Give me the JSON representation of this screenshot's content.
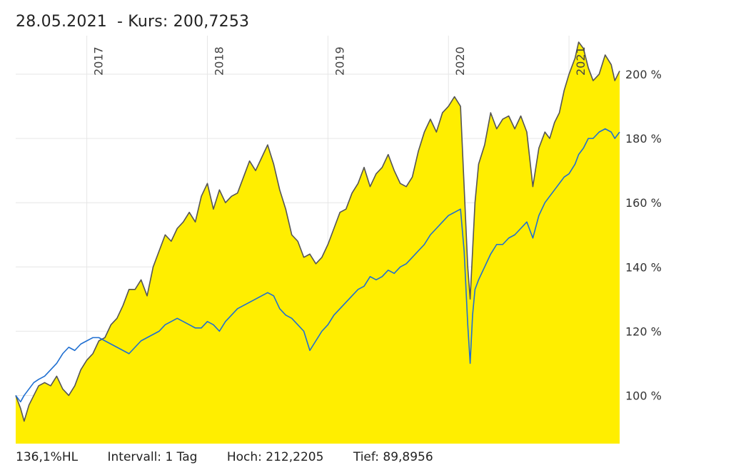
{
  "header": {
    "date": "28.05.2021",
    "kurs_label": "- Kurs: 200,7253"
  },
  "footer": {
    "hl": "136,1%HL",
    "interval": "Intervall: 1 Tag",
    "high": "Hoch: 212,2205",
    "low": "Tief: 89,8956"
  },
  "colors": {
    "area": "#ffee00",
    "price_line": "#555555",
    "benchmark_line": "#1f6fd1",
    "grid": "#e6e6e6"
  },
  "chart_data": {
    "type": "area",
    "x_unit": "year",
    "xlim": [
      2016.41,
      2021.42
    ],
    "ylim": [
      85,
      212
    ],
    "y_ticks": [
      100,
      120,
      140,
      160,
      180,
      200
    ],
    "y_tick_labels": [
      "100 %",
      "120 %",
      "140 %",
      "160 %",
      "180 %",
      "200 %"
    ],
    "x_ticks": [
      2017,
      2018,
      2019,
      2020,
      2021
    ],
    "x_tick_labels": [
      "2017",
      "2018",
      "2019",
      "2020",
      "2021"
    ],
    "grid": true,
    "series": [
      {
        "style": "area",
        "x": [
          2016.41,
          2016.45,
          2016.48,
          2016.52,
          2016.56,
          2016.6,
          2016.65,
          2016.7,
          2016.75,
          2016.8,
          2016.85,
          2016.9,
          2016.95,
          2017.0,
          2017.05,
          2017.1,
          2017.15,
          2017.2,
          2017.25,
          2017.3,
          2017.35,
          2017.4,
          2017.45,
          2017.5,
          2017.55,
          2017.6,
          2017.65,
          2017.7,
          2017.75,
          2017.8,
          2017.85,
          2017.9,
          2017.95,
          2018.0,
          2018.05,
          2018.1,
          2018.15,
          2018.2,
          2018.25,
          2018.3,
          2018.35,
          2018.4,
          2018.45,
          2018.5,
          2018.55,
          2018.6,
          2018.65,
          2018.7,
          2018.75,
          2018.8,
          2018.85,
          2018.9,
          2018.95,
          2019.0,
          2019.05,
          2019.1,
          2019.15,
          2019.2,
          2019.25,
          2019.3,
          2019.35,
          2019.4,
          2019.45,
          2019.5,
          2019.55,
          2019.6,
          2019.65,
          2019.7,
          2019.75,
          2019.8,
          2019.85,
          2019.9,
          2019.95,
          2020.0,
          2020.05,
          2020.1,
          2020.13,
          2020.16,
          2020.18,
          2020.2,
          2020.22,
          2020.25,
          2020.3,
          2020.35,
          2020.4,
          2020.45,
          2020.5,
          2020.55,
          2020.6,
          2020.65,
          2020.7,
          2020.75,
          2020.8,
          2020.84,
          2020.88,
          2020.92,
          2020.96,
          2021.0,
          2021.05,
          2021.08,
          2021.12,
          2021.16,
          2021.2,
          2021.25,
          2021.3,
          2021.35,
          2021.38,
          2021.42
        ],
        "values": [
          100,
          96,
          92,
          97,
          100,
          103,
          104,
          103,
          106,
          102,
          100,
          103,
          108,
          111,
          113,
          117,
          118,
          122,
          124,
          128,
          133,
          133,
          136,
          131,
          140,
          145,
          150,
          148,
          152,
          154,
          157,
          154,
          162,
          166,
          158,
          164,
          160,
          162,
          163,
          168,
          173,
          170,
          174,
          178,
          172,
          164,
          158,
          150,
          148,
          143,
          144,
          141,
          143,
          147,
          152,
          157,
          158,
          163,
          166,
          171,
          165,
          169,
          171,
          175,
          170,
          166,
          165,
          168,
          176,
          182,
          186,
          182,
          188,
          190,
          193,
          190,
          165,
          140,
          130,
          145,
          160,
          172,
          178,
          188,
          183,
          186,
          187,
          183,
          187,
          182,
          165,
          177,
          182,
          180,
          185,
          188,
          195,
          200,
          205,
          210,
          208,
          202,
          198,
          200,
          206,
          203,
          198,
          201
        ]
      },
      {
        "style": "line",
        "x": [
          2016.41,
          2016.45,
          2016.48,
          2016.52,
          2016.56,
          2016.6,
          2016.65,
          2016.7,
          2016.75,
          2016.8,
          2016.85,
          2016.9,
          2016.95,
          2017.0,
          2017.05,
          2017.1,
          2017.15,
          2017.2,
          2017.25,
          2017.3,
          2017.35,
          2017.4,
          2017.45,
          2017.5,
          2017.55,
          2017.6,
          2017.65,
          2017.7,
          2017.75,
          2017.8,
          2017.85,
          2017.9,
          2017.95,
          2018.0,
          2018.05,
          2018.1,
          2018.15,
          2018.2,
          2018.25,
          2018.3,
          2018.35,
          2018.4,
          2018.45,
          2018.5,
          2018.55,
          2018.6,
          2018.65,
          2018.7,
          2018.75,
          2018.8,
          2018.85,
          2018.9,
          2018.95,
          2019.0,
          2019.05,
          2019.1,
          2019.15,
          2019.2,
          2019.25,
          2019.3,
          2019.35,
          2019.4,
          2019.45,
          2019.5,
          2019.55,
          2019.6,
          2019.65,
          2019.7,
          2019.75,
          2019.8,
          2019.85,
          2019.9,
          2019.95,
          2020.0,
          2020.05,
          2020.1,
          2020.13,
          2020.16,
          2020.18,
          2020.2,
          2020.22,
          2020.25,
          2020.3,
          2020.35,
          2020.4,
          2020.45,
          2020.5,
          2020.55,
          2020.6,
          2020.65,
          2020.7,
          2020.75,
          2020.8,
          2020.84,
          2020.88,
          2020.92,
          2020.96,
          2021.0,
          2021.05,
          2021.08,
          2021.12,
          2021.16,
          2021.2,
          2021.25,
          2021.3,
          2021.35,
          2021.38,
          2021.42
        ],
        "values": [
          100,
          98,
          100,
          102,
          104,
          105,
          106,
          108,
          110,
          113,
          115,
          114,
          116,
          117,
          118,
          118,
          117,
          116,
          115,
          114,
          113,
          115,
          117,
          118,
          119,
          120,
          122,
          123,
          124,
          123,
          122,
          121,
          121,
          123,
          122,
          120,
          123,
          125,
          127,
          128,
          129,
          130,
          131,
          132,
          131,
          127,
          125,
          124,
          122,
          120,
          114,
          117,
          120,
          122,
          125,
          127,
          129,
          131,
          133,
          134,
          137,
          136,
          137,
          139,
          138,
          140,
          141,
          143,
          145,
          147,
          150,
          152,
          154,
          156,
          157,
          158,
          145,
          122,
          110,
          125,
          133,
          136,
          140,
          144,
          147,
          147,
          149,
          150,
          152,
          154,
          149,
          156,
          160,
          162,
          164,
          166,
          168,
          169,
          172,
          175,
          177,
          180,
          180,
          182,
          183,
          182,
          180,
          182
        ]
      }
    ]
  }
}
